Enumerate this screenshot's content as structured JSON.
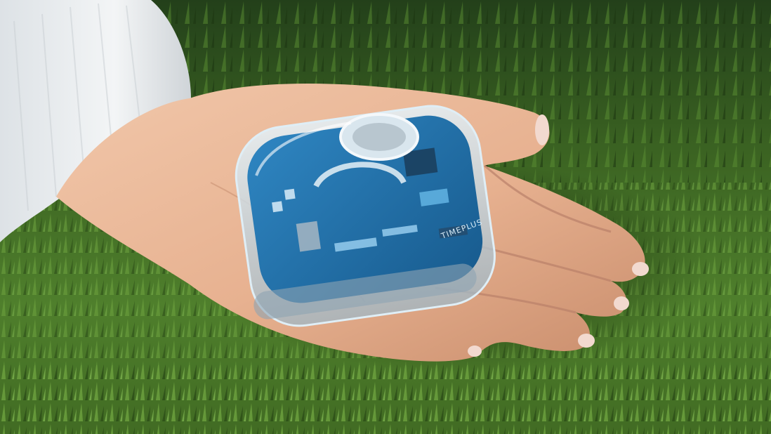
{
  "photo": {
    "subject": "hand-holding-device",
    "device_marking": "TIMEPLUS",
    "colors": {
      "grass_dark": "#1f3a12",
      "grass_mid": "#3f6b23",
      "grass_light": "#7ab04a",
      "skin": "#e9b89a",
      "skin_shadow": "#c98d6c",
      "sleeve": "#e9ecef",
      "pcb_blue": "#1f6fa8",
      "pcb_light": "#3c97cf",
      "case_clear": "#cfe6f2"
    }
  }
}
